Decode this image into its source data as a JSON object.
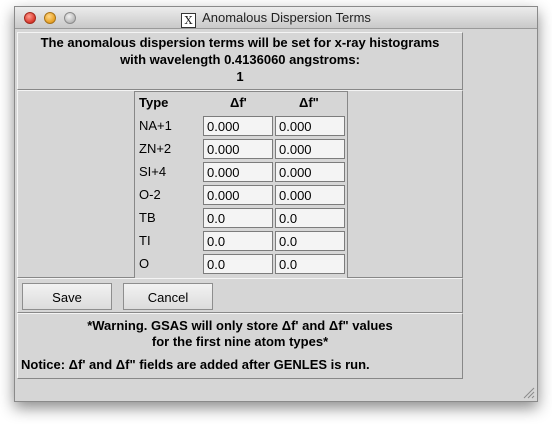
{
  "window": {
    "title": "Anomalous Dispersion Terms",
    "title_icon": "X"
  },
  "header": {
    "line1": "The anomalous dispersion terms will be set for x-ray histograms",
    "line2": "with wavelength 0.4136060 angstroms:",
    "line3": "1"
  },
  "table": {
    "col_type": "Type",
    "col_fp": "Δf'",
    "col_fpp": "Δf\"",
    "rows": [
      {
        "type": "NA+1",
        "fp": "0.000",
        "fpp": "0.000"
      },
      {
        "type": "ZN+2",
        "fp": "0.000",
        "fpp": "0.000"
      },
      {
        "type": "SI+4",
        "fp": "0.000",
        "fpp": "0.000"
      },
      {
        "type": "O-2",
        "fp": "0.000",
        "fpp": "0.000"
      },
      {
        "type": "TB",
        "fp": "0.0",
        "fpp": "0.0"
      },
      {
        "type": "TI",
        "fp": "0.0",
        "fpp": "0.0"
      },
      {
        "type": "O",
        "fp": "0.0",
        "fpp": "0.0"
      }
    ]
  },
  "buttons": {
    "save": "Save",
    "cancel": "Cancel"
  },
  "notes": {
    "warning_line1": "*Warning.  GSAS will only store Δf' and Δf\" values",
    "warning_line2": "for the first nine atom types*",
    "notice": "Notice: Δf' and Δf\" fields are added after GENLES is run."
  },
  "icons": {
    "close": "close-icon",
    "minimize": "minimize-icon",
    "maximize": "zoom-icon",
    "resize": "resize-grip-icon"
  },
  "colors": {
    "window_bg": "#d6d6d6",
    "close": "#d9372b",
    "minimize": "#e7a022",
    "zoom": "#b8b8b8"
  }
}
